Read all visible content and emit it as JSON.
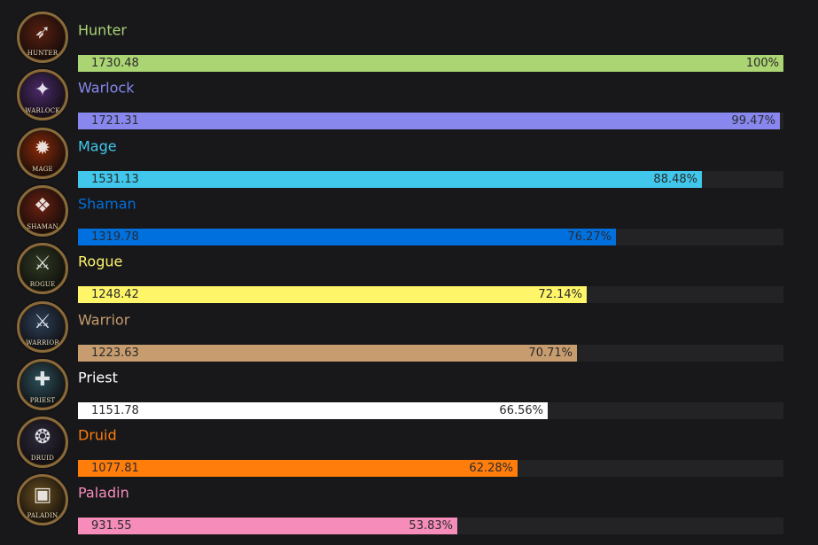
{
  "chart_data": {
    "type": "bar",
    "orientation": "horizontal",
    "categories": [
      "Hunter",
      "Warlock",
      "Mage",
      "Shaman",
      "Rogue",
      "Warrior",
      "Priest",
      "Druid",
      "Paladin"
    ],
    "values": [
      1730.48,
      1721.31,
      1531.13,
      1319.78,
      1248.42,
      1223.63,
      1151.78,
      1077.81,
      931.55
    ],
    "value_labels": [
      "1730.48",
      "1721.31",
      "1531.13",
      "1319.78",
      "1248.42",
      "1223.63",
      "1151.78",
      "1077.81",
      "931.55"
    ],
    "percent_labels": [
      "100%",
      "99.47%",
      "88.48%",
      "76.27%",
      "72.14%",
      "70.71%",
      "66.56%",
      "62.28%",
      "53.83%"
    ],
    "percents": [
      100,
      99.47,
      88.48,
      76.27,
      72.14,
      70.71,
      66.56,
      62.28,
      53.83
    ],
    "colors": [
      "#abd473",
      "#8787ed",
      "#40c7eb",
      "#0070de",
      "#fff569",
      "#c79c6e",
      "#ffffff",
      "#ff7d0a",
      "#f58cba"
    ],
    "icon_captions": [
      "HUNTER",
      "WARLOCK",
      "MAGE",
      "SHAMAN",
      "ROGUE",
      "WARRIOR",
      "PRIEST",
      "DRUID",
      "PALADIN"
    ],
    "icon_names": [
      "bow-icon",
      "claw-icon",
      "fire-icon",
      "totem-icon",
      "daggers-icon",
      "sword-icon",
      "mace-icon",
      "wolf-icon",
      "tome-icon"
    ],
    "icon_bg_colors": [
      "#5a1f10",
      "#4b2a6a",
      "#8a2a08",
      "#6a2010",
      "#2f3a22",
      "#2e3f58",
      "#2c4f5a",
      "#2f2b3e",
      "#6b5020"
    ],
    "icon_glyphs": [
      "➶",
      "✦",
      "✹",
      "❖",
      "⚔",
      "⚔",
      "✚",
      "❂",
      "▣"
    ],
    "xlim": [
      0,
      100
    ],
    "grid": false,
    "legend": "none"
  }
}
